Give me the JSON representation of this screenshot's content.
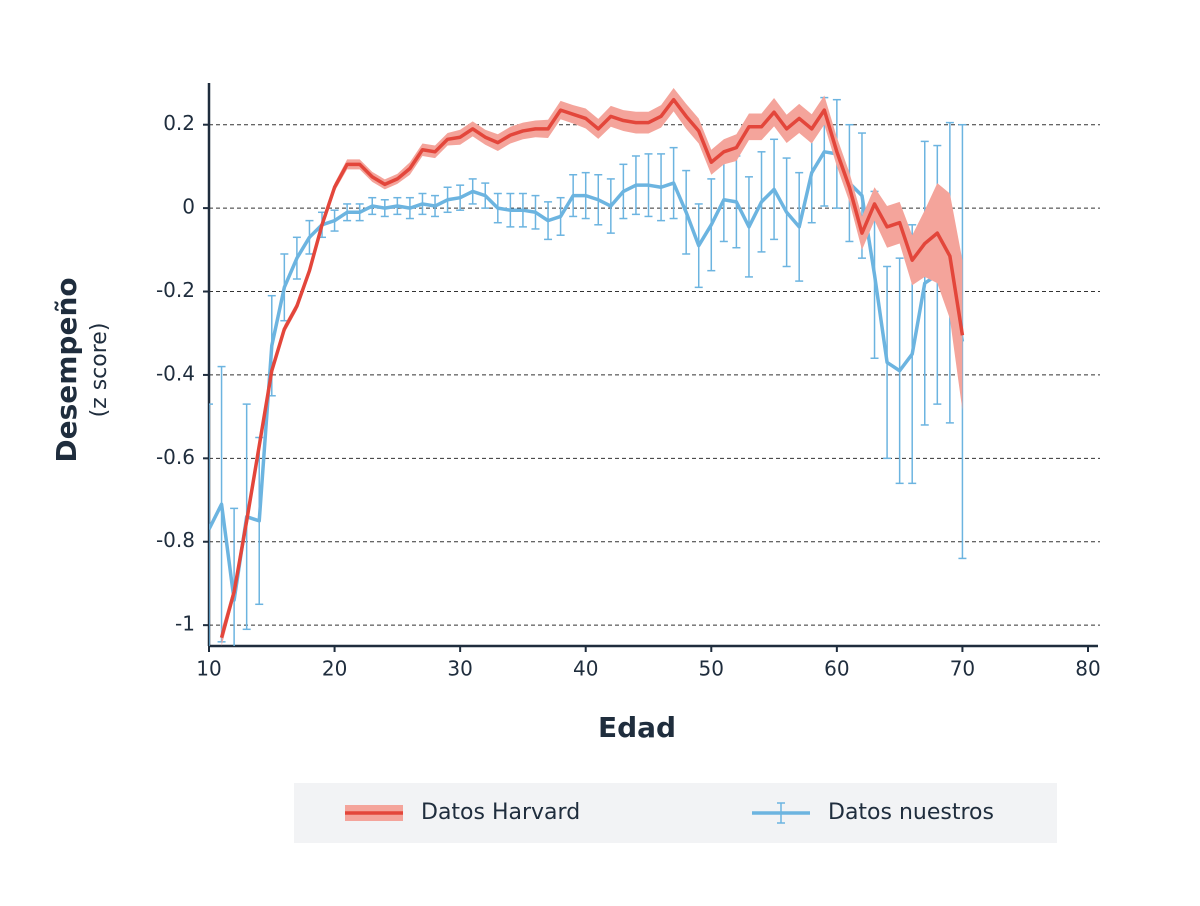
{
  "chart_data": {
    "type": "line",
    "ylabel": "Desempeño",
    "ylabel_note": "(z score)",
    "xlabel": "Edad",
    "xlim": [
      10,
      80
    ],
    "xticks": [
      10,
      20,
      30,
      40,
      50,
      60,
      70,
      80
    ],
    "ylim": [
      -1.05,
      0.3
    ],
    "yticks": [
      -1,
      -0.8,
      -0.6,
      -0.4,
      -0.2,
      0,
      0.2
    ],
    "grid": true,
    "legend": "bottom",
    "series": [
      {
        "name": "Datos Harvard",
        "color": "#e3463b",
        "band_color": "#f4a49b",
        "x": [
          11,
          12,
          13,
          14,
          15,
          16,
          17,
          18,
          19,
          20,
          21,
          22,
          23,
          24,
          25,
          26,
          27,
          28,
          29,
          30,
          31,
          32,
          33,
          34,
          35,
          36,
          37,
          38,
          39,
          40,
          41,
          42,
          43,
          44,
          45,
          46,
          47,
          48,
          49,
          50,
          51,
          52,
          53,
          54,
          55,
          56,
          57,
          58,
          59,
          60,
          61,
          62,
          63,
          64,
          65,
          66,
          67,
          68,
          69,
          70
        ],
        "values": [
          -1.03,
          -0.92,
          -0.75,
          -0.57,
          -0.39,
          -0.29,
          -0.235,
          -0.15,
          -0.04,
          0.05,
          0.105,
          0.105,
          0.075,
          0.057,
          0.07,
          0.095,
          0.14,
          0.135,
          0.165,
          0.17,
          0.19,
          0.17,
          0.157,
          0.175,
          0.185,
          0.19,
          0.19,
          0.235,
          0.225,
          0.215,
          0.19,
          0.22,
          0.21,
          0.205,
          0.205,
          0.22,
          0.26,
          0.22,
          0.185,
          0.11,
          0.135,
          0.145,
          0.195,
          0.195,
          0.23,
          0.19,
          0.215,
          0.19,
          0.235,
          0.135,
          0.05,
          -0.06,
          0.01,
          -0.045,
          -0.035,
          -0.125,
          -0.085,
          -0.06,
          -0.115,
          -0.305
        ],
        "band": [
          0.02,
          0.015,
          0.012,
          0.01,
          0.01,
          0.01,
          0.01,
          0.01,
          0.01,
          0.01,
          0.012,
          0.012,
          0.012,
          0.012,
          0.012,
          0.015,
          0.015,
          0.015,
          0.015,
          0.018,
          0.018,
          0.018,
          0.02,
          0.02,
          0.02,
          0.02,
          0.022,
          0.022,
          0.022,
          0.024,
          0.024,
          0.025,
          0.025,
          0.026,
          0.026,
          0.027,
          0.028,
          0.03,
          0.03,
          0.03,
          0.03,
          0.032,
          0.032,
          0.032,
          0.034,
          0.034,
          0.035,
          0.035,
          0.035,
          0.035,
          0.035,
          0.04,
          0.04,
          0.05,
          0.05,
          0.06,
          0.08,
          0.12,
          0.15,
          0.18
        ]
      },
      {
        "name": "Datos nuestros",
        "color": "#6cb4e0",
        "x": [
          10,
          11,
          12,
          13,
          14,
          15,
          16,
          17,
          18,
          19,
          20,
          21,
          22,
          23,
          24,
          25,
          26,
          27,
          28,
          29,
          30,
          31,
          32,
          33,
          34,
          35,
          36,
          37,
          38,
          39,
          40,
          41,
          42,
          43,
          44,
          45,
          46,
          47,
          48,
          49,
          50,
          51,
          52,
          53,
          54,
          55,
          56,
          57,
          58,
          59,
          60,
          61,
          62,
          63,
          64,
          65,
          66,
          67,
          68,
          69,
          70
        ],
        "values": [
          -0.77,
          -0.71,
          -0.94,
          -0.74,
          -0.75,
          -0.33,
          -0.19,
          -0.12,
          -0.07,
          -0.04,
          -0.03,
          -0.01,
          -0.01,
          0.005,
          0,
          0.005,
          0,
          0.01,
          0.005,
          0.02,
          0.025,
          0.04,
          0.03,
          0,
          -0.005,
          -0.005,
          -0.01,
          -0.03,
          -0.02,
          0.03,
          0.03,
          0.02,
          0.005,
          0.04,
          0.055,
          0.055,
          0.05,
          0.06,
          -0.01,
          -0.09,
          -0.04,
          0.02,
          0.015,
          -0.045,
          0.015,
          0.045,
          -0.01,
          -0.045,
          0.085,
          0.135,
          0.13,
          0.06,
          0.03,
          -0.16,
          -0.37,
          -0.39,
          -0.35,
          -0.18,
          -0.16,
          -0.155,
          -0.32
        ],
        "errors": [
          0.3,
          0.33,
          0.22,
          0.27,
          0.2,
          0.12,
          0.08,
          0.05,
          0.04,
          0.03,
          0.025,
          0.02,
          0.02,
          0.02,
          0.02,
          0.02,
          0.025,
          0.025,
          0.025,
          0.03,
          0.03,
          0.03,
          0.03,
          0.035,
          0.04,
          0.04,
          0.04,
          0.045,
          0.045,
          0.05,
          0.055,
          0.06,
          0.065,
          0.065,
          0.07,
          0.075,
          0.08,
          0.085,
          0.1,
          0.1,
          0.11,
          0.1,
          0.11,
          0.12,
          0.12,
          0.12,
          0.13,
          0.13,
          0.12,
          0.13,
          0.13,
          0.14,
          0.15,
          0.2,
          0.23,
          0.27,
          0.31,
          0.34,
          0.31,
          0.36,
          0.52
        ]
      }
    ]
  }
}
